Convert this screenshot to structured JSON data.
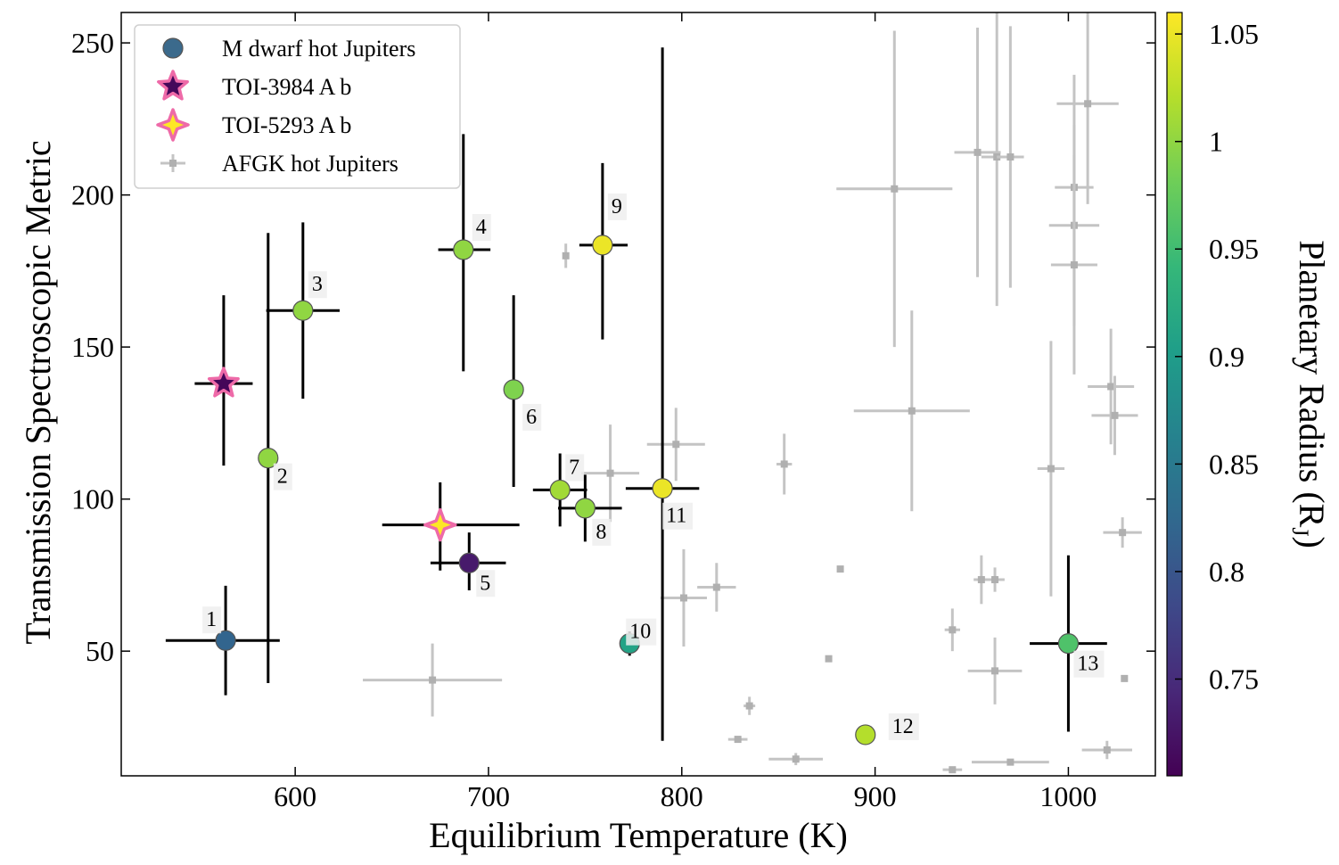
{
  "chart_data": {
    "type": "scatter",
    "title": "",
    "xlabel": "Equilibrium Temperature (K)",
    "ylabel": "Transmission Spectroscopic Metric",
    "xlim": [
      510,
      1045
    ],
    "ylim": [
      9,
      260
    ],
    "xticks": [
      600,
      700,
      800,
      900,
      1000
    ],
    "yticks": [
      50,
      100,
      150,
      200,
      250
    ],
    "grid": false,
    "legend": {
      "placement": "top-left",
      "entries": [
        {
          "label": "M dwarf hot Jupiters",
          "marker": "circle"
        },
        {
          "label": "TOI-3984 A b",
          "marker": "star"
        },
        {
          "label": "TOI-5293 A b",
          "marker": "four-point-star"
        },
        {
          "label": "AFGK hot Jupiters",
          "marker": "errorbar"
        }
      ]
    },
    "colorbar": {
      "label": "Planetary Radius (R",
      "label_sub": "J",
      "label_end": ")",
      "colormap": "viridis",
      "range": [
        0.705,
        1.06
      ],
      "ticks": [
        0.75,
        0.8,
        0.85,
        0.9,
        0.95,
        1.0,
        1.05
      ],
      "tick_labels": [
        "0.75",
        "0.8",
        "0.85",
        "0.9",
        "0.95",
        "1",
        "1.05"
      ]
    },
    "series": [
      {
        "name": "M dwarf hot Jupiters",
        "points": [
          {
            "label": "1",
            "x": 564,
            "y": 53.5,
            "xerr": [
              31,
              28
            ],
            "yerr": [
              18,
              18
            ],
            "radius": 0.82
          },
          {
            "label": "2",
            "x": 586,
            "y": 113.5,
            "xerr": [
              4,
              4
            ],
            "yerr": [
              74,
              74
            ],
            "radius": 1.0
          },
          {
            "label": "3",
            "x": 604,
            "y": 162,
            "xerr": [
              19,
              19
            ],
            "yerr": [
              29,
              29
            ],
            "radius": 1.0
          },
          {
            "label": "4",
            "x": 687,
            "y": 182,
            "xerr": [
              13,
              14
            ],
            "yerr": [
              40,
              38
            ],
            "radius": 1.0
          },
          {
            "label": "5",
            "x": 690,
            "y": 79,
            "xerr": [
              20,
              19
            ],
            "yerr": [
              9,
              10
            ],
            "radius": 0.73
          },
          {
            "label": "6",
            "x": 713,
            "y": 136,
            "xerr": [
              0,
              0
            ],
            "yerr": [
              32,
              31
            ],
            "radius": 0.99
          },
          {
            "label": "7",
            "x": 737,
            "y": 103,
            "xerr": [
              14,
              14
            ],
            "yerr": [
              12,
              12
            ],
            "radius": 1.01
          },
          {
            "label": "8",
            "x": 750,
            "y": 97,
            "xerr": [
              14,
              19
            ],
            "yerr": [
              11,
              11
            ],
            "radius": 1.0
          },
          {
            "label": "9",
            "x": 759,
            "y": 183.5,
            "xerr": [
              12,
              13
            ],
            "yerr": [
              31,
              27
            ],
            "radius": 1.05
          },
          {
            "label": "10",
            "x": 773,
            "y": 52.5,
            "xerr": [
              0,
              0
            ],
            "yerr": [
              4,
              4
            ],
            "radius": 0.91
          },
          {
            "label": "11",
            "x": 790,
            "y": 103.5,
            "xerr": [
              19,
              19
            ],
            "yerr": [
              83,
              145
            ],
            "radius": 1.05
          },
          {
            "label": "12",
            "x": 895,
            "y": 22.5,
            "xerr": [
              0,
              0
            ],
            "yerr": [
              0,
              0
            ],
            "radius": 1.02
          },
          {
            "label": "13",
            "x": 1000,
            "y": 52.5,
            "xerr": [
              20,
              20
            ],
            "yerr": [
              29,
              29
            ],
            "radius": 0.96
          }
        ]
      },
      {
        "name": "TOI-3984 A b",
        "points": [
          {
            "x": 563,
            "y": 138,
            "xerr": [
              15,
              15
            ],
            "yerr": [
              27,
              29
            ],
            "radius": 0.71
          }
        ]
      },
      {
        "name": "TOI-5293 A b",
        "points": [
          {
            "x": 675,
            "y": 91.5,
            "xerr": [
              30,
              41
            ],
            "yerr": [
              15,
              14
            ],
            "radius": 1.06
          }
        ]
      },
      {
        "name": "AFGK hot Jupiters",
        "points": [
          {
            "x": 671,
            "y": 40.5,
            "xerr": [
              36,
              36
            ],
            "yerr": [
              12,
              12
            ]
          },
          {
            "x": 740,
            "y": 180,
            "xerr": [
              1,
              1
            ],
            "yerr": [
              4,
              4
            ]
          },
          {
            "x": 763,
            "y": 108.5,
            "xerr": [
              15,
              15
            ],
            "yerr": [
              16,
              16
            ]
          },
          {
            "x": 797,
            "y": 118,
            "xerr": [
              15,
              15
            ],
            "yerr": [
              12,
              12
            ]
          },
          {
            "x": 801,
            "y": 67.5,
            "xerr": [
              12,
              12
            ],
            "yerr": [
              16,
              16
            ]
          },
          {
            "x": 818,
            "y": 71,
            "xerr": [
              10,
              10
            ],
            "yerr": [
              8,
              8
            ]
          },
          {
            "x": 829,
            "y": 21,
            "xerr": [
              5,
              5
            ],
            "yerr": [
              1,
              1
            ]
          },
          {
            "x": 835,
            "y": 32,
            "xerr": [
              3,
              3
            ],
            "yerr": [
              3,
              3
            ]
          },
          {
            "x": 853,
            "y": 111.5,
            "xerr": [
              4,
              4
            ],
            "yerr": [
              10,
              10
            ]
          },
          {
            "x": 859,
            "y": 14.5,
            "xerr": [
              14,
              14
            ],
            "yerr": [
              2,
              2
            ]
          },
          {
            "x": 876,
            "y": 47.5,
            "xerr": [
              0,
              0
            ],
            "yerr": [
              0,
              0
            ]
          },
          {
            "x": 882,
            "y": 77,
            "xerr": [
              0,
              0
            ],
            "yerr": [
              0,
              0
            ]
          },
          {
            "x": 910,
            "y": 202,
            "xerr": [
              30,
              30
            ],
            "yerr": [
              52,
              52
            ]
          },
          {
            "x": 919,
            "y": 129,
            "xerr": [
              30,
              30
            ],
            "yerr": [
              33,
              33
            ]
          },
          {
            "x": 940,
            "y": 57,
            "xerr": [
              4,
              4
            ],
            "yerr": [
              7,
              7
            ]
          },
          {
            "x": 940,
            "y": 11,
            "xerr": [
              5,
              5
            ],
            "yerr": [
              1,
              1
            ]
          },
          {
            "x": 953,
            "y": 214,
            "xerr": [
              12,
              12
            ],
            "yerr": [
              41,
              41
            ]
          },
          {
            "x": 955,
            "y": 73.5,
            "xerr": [
              4,
              4
            ],
            "yerr": [
              8,
              8
            ]
          },
          {
            "x": 962,
            "y": 73.5,
            "xerr": [
              5,
              5
            ],
            "yerr": [
              4,
              4
            ]
          },
          {
            "x": 962,
            "y": 43.5,
            "xerr": [
              14,
              14
            ],
            "yerr": [
              11,
              11
            ]
          },
          {
            "x": 963,
            "y": 212.5,
            "xerr": [
              8,
              8
            ],
            "yerr": [
              49,
              49
            ]
          },
          {
            "x": 970,
            "y": 212.5,
            "xerr": [
              7,
              7
            ],
            "yerr": [
              43,
              43
            ]
          },
          {
            "x": 970,
            "y": 13.5,
            "xerr": [
              20,
              20
            ],
            "yerr": [
              1,
              1
            ]
          },
          {
            "x": 991,
            "y": 110,
            "xerr": [
              7,
              7
            ],
            "yerr": [
              42,
              42
            ]
          },
          {
            "x": 1003,
            "y": 202.5,
            "xerr": [
              10,
              10
            ],
            "yerr": [
              37,
              37
            ]
          },
          {
            "x": 1003,
            "y": 190,
            "xerr": [
              13,
              13
            ],
            "yerr": [
              33,
              33
            ]
          },
          {
            "x": 1003,
            "y": 177,
            "xerr": [
              12,
              12
            ],
            "yerr": [
              36,
              36
            ]
          },
          {
            "x": 1010,
            "y": 230,
            "xerr": [
              16,
              16
            ],
            "yerr": [
              33,
              33
            ]
          },
          {
            "x": 1020,
            "y": 17.5,
            "xerr": [
              13,
              13
            ],
            "yerr": [
              3,
              3
            ]
          },
          {
            "x": 1022,
            "y": 137,
            "xerr": [
              12,
              12
            ],
            "yerr": [
              19,
              19
            ]
          },
          {
            "x": 1024,
            "y": 127.5,
            "xerr": [
              12,
              12
            ],
            "yerr": [
              13,
              13
            ]
          },
          {
            "x": 1028,
            "y": 89,
            "xerr": [
              10,
              10
            ],
            "yerr": [
              5,
              5
            ]
          },
          {
            "x": 1029,
            "y": 41,
            "xerr": [
              0,
              0
            ],
            "yerr": [
              0,
              0
            ]
          }
        ]
      }
    ]
  }
}
